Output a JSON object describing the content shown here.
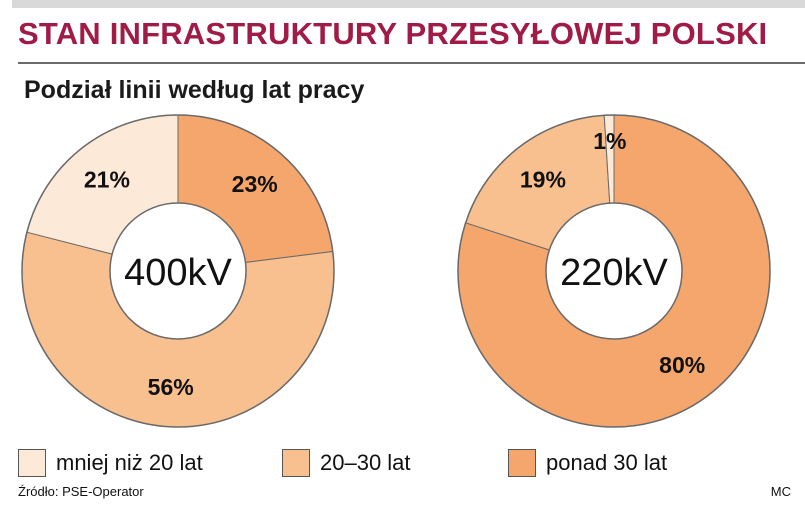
{
  "header": {
    "title": "STAN INFRASTRUKTURY PRZESYŁOWEJ POLSKI",
    "subtitle": "Podział linii według lat pracy"
  },
  "colors": {
    "title": "#a01c46",
    "ring_stroke": "#6a6a6a",
    "center_fill": "#ffffff",
    "category_colors": [
      "#fde9d7",
      "#f8bf8f",
      "#f5a66c"
    ]
  },
  "legend": [
    {
      "label": "mniej niż 20 lat",
      "color": "#fde9d7"
    },
    {
      "label": "20–30 lat",
      "color": "#f8bf8f"
    },
    {
      "label": "ponad 30 lat",
      "color": "#f5a66c"
    }
  ],
  "chart_data": [
    {
      "type": "pie",
      "style": "donut",
      "center_label": "400kV",
      "categories": [
        "mniej niż 20 lat",
        "20–30 lat",
        "ponad 30 lat"
      ],
      "slices": [
        {
          "category": "ponad 30 lat",
          "value": 23,
          "label": "23%"
        },
        {
          "category": "20–30 lat",
          "value": 56,
          "label": "56%"
        },
        {
          "category": "mniej niż 20 lat",
          "value": 21,
          "label": "21%"
        }
      ]
    },
    {
      "type": "pie",
      "style": "donut",
      "center_label": "220kV",
      "categories": [
        "mniej niż 20 lat",
        "20–30 lat",
        "ponad 30 lat"
      ],
      "slices": [
        {
          "category": "ponad 30 lat",
          "value": 80,
          "label": "80%"
        },
        {
          "category": "20–30 lat",
          "value": 19,
          "label": "19%"
        },
        {
          "category": "mniej niż 20 lat",
          "value": 1,
          "label": "1%"
        }
      ]
    }
  ],
  "footer": {
    "source": "Źródło: PSE-Operator",
    "credit": "MC"
  }
}
